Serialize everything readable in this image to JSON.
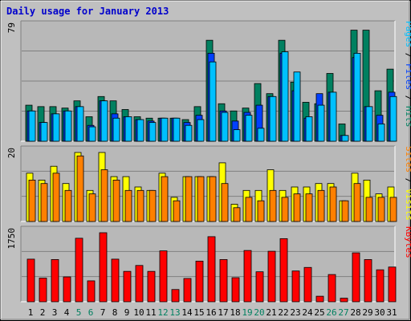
{
  "title": "Daily usage for January 2013",
  "colors": {
    "background": "#c0c0c0",
    "plot_bg": "#b8b8b8",
    "title": "#0000cc",
    "hits": "#008060",
    "files": "#0040ff",
    "pages": "#00c0ff",
    "visits": "#ffff00",
    "sites": "#ff8000",
    "kbytes": "#ff0000",
    "weekend_label": "#008060",
    "weekday_label": "#000000",
    "grid": "#808080"
  },
  "chart_data": [
    {
      "type": "bar",
      "panel": "hits_files_pages",
      "ymax_label": "79",
      "ylim": [
        0,
        79
      ],
      "grid": true,
      "right_label": {
        "parts": [
          "Pages",
          "Files",
          "Hits"
        ],
        "separator": " / "
      },
      "categories": [
        "1",
        "2",
        "3",
        "4",
        "5",
        "6",
        "7",
        "8",
        "9",
        "10",
        "11",
        "12",
        "13",
        "14",
        "15",
        "16",
        "17",
        "18",
        "19",
        "20",
        "21",
        "22",
        "23",
        "24",
        "25",
        "26",
        "27",
        "28",
        "29",
        "30",
        "31"
      ],
      "weekend_days": [
        "5",
        "6",
        "12",
        "13",
        "19",
        "20",
        "26",
        "27"
      ],
      "series": [
        {
          "name": "Hits",
          "values": [
            25,
            24,
            24,
            23,
            28,
            17,
            31,
            28,
            22,
            17,
            16,
            16,
            16,
            15,
            24,
            70,
            26,
            21,
            23,
            40,
            33,
            70,
            41,
            27,
            26,
            47,
            12,
            77,
            77,
            35,
            50
          ]
        },
        {
          "name": "Files",
          "values": [
            21,
            13,
            19,
            21,
            24,
            11,
            28,
            19,
            17,
            15,
            14,
            16,
            16,
            13,
            18,
            61,
            21,
            14,
            20,
            25,
            31,
            61,
            35,
            16,
            33,
            34,
            4,
            58,
            24,
            18,
            34
          ]
        },
        {
          "name": "Pages",
          "values": [
            21,
            13,
            19,
            21,
            24,
            10,
            28,
            16,
            17,
            15,
            13,
            16,
            16,
            11,
            15,
            55,
            20,
            8,
            18,
            9,
            31,
            62,
            48,
            17,
            25,
            34,
            4,
            61,
            24,
            12,
            31
          ]
        }
      ]
    },
    {
      "type": "bar",
      "panel": "visits_sites",
      "ymax_label": "20",
      "ylim": [
        0,
        20
      ],
      "grid": true,
      "right_label": {
        "parts": [
          "Sites",
          "Visits"
        ],
        "separator": " / "
      },
      "categories": [
        "1",
        "2",
        "3",
        "4",
        "5",
        "6",
        "7",
        "8",
        "9",
        "10",
        "11",
        "12",
        "13",
        "14",
        "15",
        "16",
        "17",
        "18",
        "19",
        "20",
        "21",
        "22",
        "23",
        "24",
        "25",
        "26",
        "27",
        "28",
        "29",
        "30",
        "31"
      ],
      "series": [
        {
          "name": "Visits",
          "values": [
            14,
            12,
            16,
            11,
            20,
            9,
            20,
            13,
            13,
            10,
            9,
            14,
            7,
            13,
            13,
            13,
            17,
            5,
            9,
            9,
            15,
            9,
            10,
            10,
            11,
            11,
            6,
            14,
            12,
            8,
            10
          ]
        },
        {
          "name": "Sites",
          "values": [
            12,
            11,
            14,
            9,
            19,
            8,
            15,
            12,
            9,
            9,
            9,
            13,
            6,
            13,
            13,
            13,
            11,
            4,
            7,
            6,
            9,
            7,
            8,
            8,
            9,
            10,
            6,
            11,
            7,
            7,
            7
          ]
        }
      ]
    },
    {
      "type": "bar",
      "panel": "kbytes",
      "ymax_label": "1750",
      "ylim": [
        0,
        1750
      ],
      "grid": true,
      "right_label": {
        "parts": [
          "KBytes"
        ],
        "separator": ""
      },
      "categories": [
        "1",
        "2",
        "3",
        "4",
        "5",
        "6",
        "7",
        "8",
        "9",
        "10",
        "11",
        "12",
        "13",
        "14",
        "15",
        "16",
        "17",
        "18",
        "19",
        "20",
        "21",
        "22",
        "23",
        "24",
        "25",
        "26",
        "27",
        "28",
        "29",
        "30",
        "31"
      ],
      "series": [
        {
          "name": "KBytes",
          "values": [
            1080,
            600,
            1070,
            630,
            1610,
            530,
            1750,
            1080,
            770,
            920,
            770,
            1290,
            310,
            590,
            1030,
            1650,
            1070,
            610,
            1300,
            760,
            1280,
            1600,
            780,
            870,
            140,
            690,
            90,
            1240,
            1070,
            810,
            880
          ]
        }
      ]
    }
  ]
}
